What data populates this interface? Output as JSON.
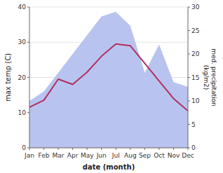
{
  "chart_data": {
    "type": "line",
    "xlabel": "date (month)",
    "ylabel": "max temp (C)",
    "y2label": "med. precipitation\n(kg/m2)",
    "categories": [
      "Jan",
      "Feb",
      "Mar",
      "Apr",
      "May",
      "Jun",
      "Jul",
      "Aug",
      "Sep",
      "Oct",
      "Nov",
      "Dec"
    ],
    "series": [
      {
        "type": "area",
        "axis": "y2",
        "color": "#b8c4ef",
        "values": [
          10,
          12,
          16,
          20,
          24,
          28,
          29,
          26,
          16,
          22,
          14,
          13
        ]
      },
      {
        "type": "line",
        "color": "#b03060",
        "values": [
          11.5,
          13.5,
          19.5,
          18.0,
          21.5,
          26.0,
          29.5,
          29.0,
          24.0,
          19.0,
          14.0,
          10.5
        ]
      }
    ],
    "ylim": [
      0,
      40
    ],
    "yticks": [
      0,
      10,
      20,
      30,
      40
    ],
    "y2lim": [
      0,
      30
    ],
    "y2ticks": [
      0,
      5,
      10,
      15,
      20,
      25,
      30
    ],
    "grid": true
  }
}
